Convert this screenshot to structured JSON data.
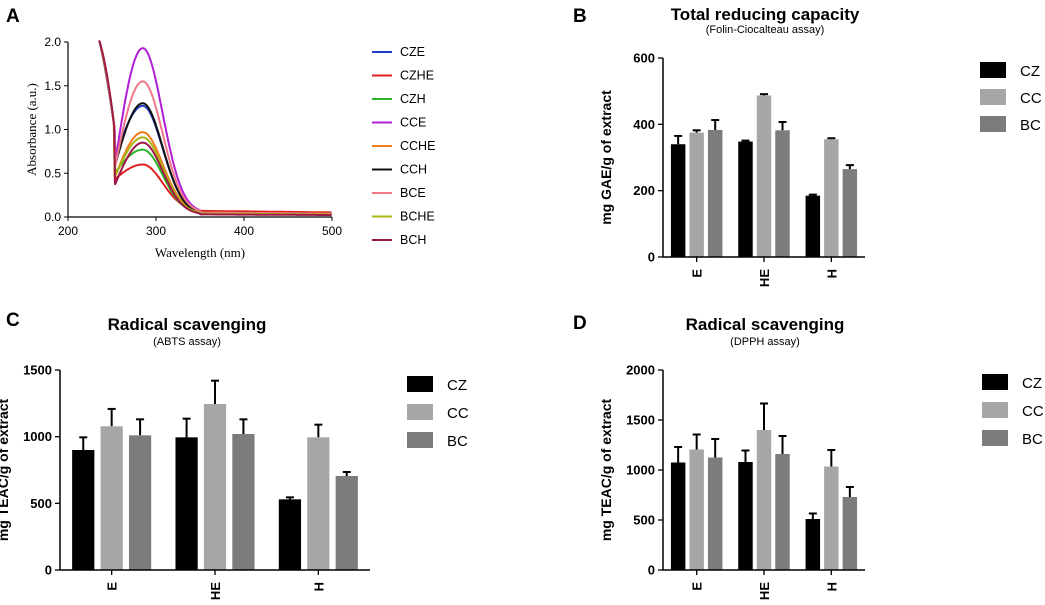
{
  "chart_data": [
    {
      "panel": "A",
      "type": "line",
      "title": "",
      "xlabel": "Wavelength (nm)",
      "ylabel": "Absorbance (a.u.)",
      "xlim": [
        200,
        500
      ],
      "ylim": [
        0,
        2.0
      ],
      "xticks": [
        "200",
        "300",
        "400",
        "500"
      ],
      "yticks": [
        "0.0",
        "0.5",
        "1.0",
        "1.5",
        "2.0"
      ],
      "series": [
        {
          "name": "CZE",
          "color": "#1f3cc4",
          "peak": 1.27,
          "min": 0.65,
          "tail": 0.05
        },
        {
          "name": "CZHE",
          "color": "#e02020",
          "peak": 0.6,
          "min": 0.43,
          "tail": 0.07
        },
        {
          "name": "CZH",
          "color": "#2bb52b",
          "peak": 0.77,
          "min": 0.5,
          "tail": 0.04
        },
        {
          "name": "CCE",
          "color": "#b01fd6",
          "peak": 1.93,
          "min": 0.58,
          "tail": 0.05
        },
        {
          "name": "CCHE",
          "color": "#f07d1a",
          "peak": 0.97,
          "min": 0.45,
          "tail": 0.05
        },
        {
          "name": "CCH",
          "color": "#111111",
          "peak": 1.3,
          "min": 0.57,
          "tail": 0.04
        },
        {
          "name": "BCE",
          "color": "#f07888",
          "peak": 1.55,
          "min": 0.55,
          "tail": 0.05
        },
        {
          "name": "BCHE",
          "color": "#a8b614",
          "peak": 0.91,
          "min": 0.45,
          "tail": 0.04
        },
        {
          "name": "BCH",
          "color": "#a01848",
          "peak": 0.85,
          "min": 0.36,
          "tail": 0.03
        }
      ]
    },
    {
      "panel": "B",
      "type": "bar",
      "title": "Total reducing capacity",
      "subtitle": "(Folin-Ciocalteau assay)",
      "ylabel": "mg GAE/g of extract",
      "ylim": [
        0,
        600
      ],
      "yticks": [
        "0",
        "200",
        "400",
        "600"
      ],
      "categories": [
        "E",
        "HE",
        "H"
      ],
      "series": [
        {
          "name": "CZ",
          "color": "#000000",
          "values": [
            340,
            348,
            185
          ],
          "errors": [
            25,
            3,
            3
          ]
        },
        {
          "name": "CC",
          "color": "#a6a6a8",
          "values": [
            375,
            487,
            355
          ],
          "errors": [
            7,
            4,
            3
          ]
        },
        {
          "name": "BC",
          "color": "#7c7c7c",
          "values": [
            383,
            382,
            265
          ],
          "errors": [
            30,
            25,
            12
          ]
        }
      ]
    },
    {
      "panel": "C",
      "type": "bar",
      "title": "Radical scavenging",
      "subtitle": "(ABTS assay)",
      "ylabel": "mg TEAC/g of extract",
      "ylim": [
        0,
        1500
      ],
      "yticks": [
        "0",
        "500",
        "1000",
        "1500"
      ],
      "categories": [
        "E",
        "HE",
        "H"
      ],
      "series": [
        {
          "name": "CZ",
          "color": "#000000",
          "values": [
            900,
            995,
            530
          ],
          "errors": [
            95,
            140,
            15
          ]
        },
        {
          "name": "CC",
          "color": "#a6a6a8",
          "values": [
            1078,
            1245,
            995
          ],
          "errors": [
            130,
            175,
            95
          ]
        },
        {
          "name": "BC",
          "color": "#7c7c7c",
          "values": [
            1010,
            1020,
            705
          ],
          "errors": [
            120,
            110,
            30
          ]
        }
      ]
    },
    {
      "panel": "D",
      "type": "bar",
      "title": "Radical scavenging",
      "subtitle": "(DPPH assay)",
      "ylabel": "mg TEAC/g of extract",
      "ylim": [
        0,
        2000
      ],
      "yticks": [
        "0",
        "500",
        "1000",
        "1500",
        "2000"
      ],
      "categories": [
        "E",
        "HE",
        "H"
      ],
      "series": [
        {
          "name": "CZ",
          "color": "#000000",
          "values": [
            1075,
            1080,
            510
          ],
          "errors": [
            155,
            115,
            55
          ]
        },
        {
          "name": "CC",
          "color": "#a6a6a8",
          "values": [
            1205,
            1400,
            1035
          ],
          "errors": [
            150,
            265,
            165
          ]
        },
        {
          "name": "BC",
          "color": "#7c7c7c",
          "values": [
            1125,
            1160,
            730
          ],
          "errors": [
            185,
            180,
            100
          ]
        }
      ]
    }
  ],
  "panel_labels": [
    "A",
    "B",
    "C",
    "D"
  ]
}
